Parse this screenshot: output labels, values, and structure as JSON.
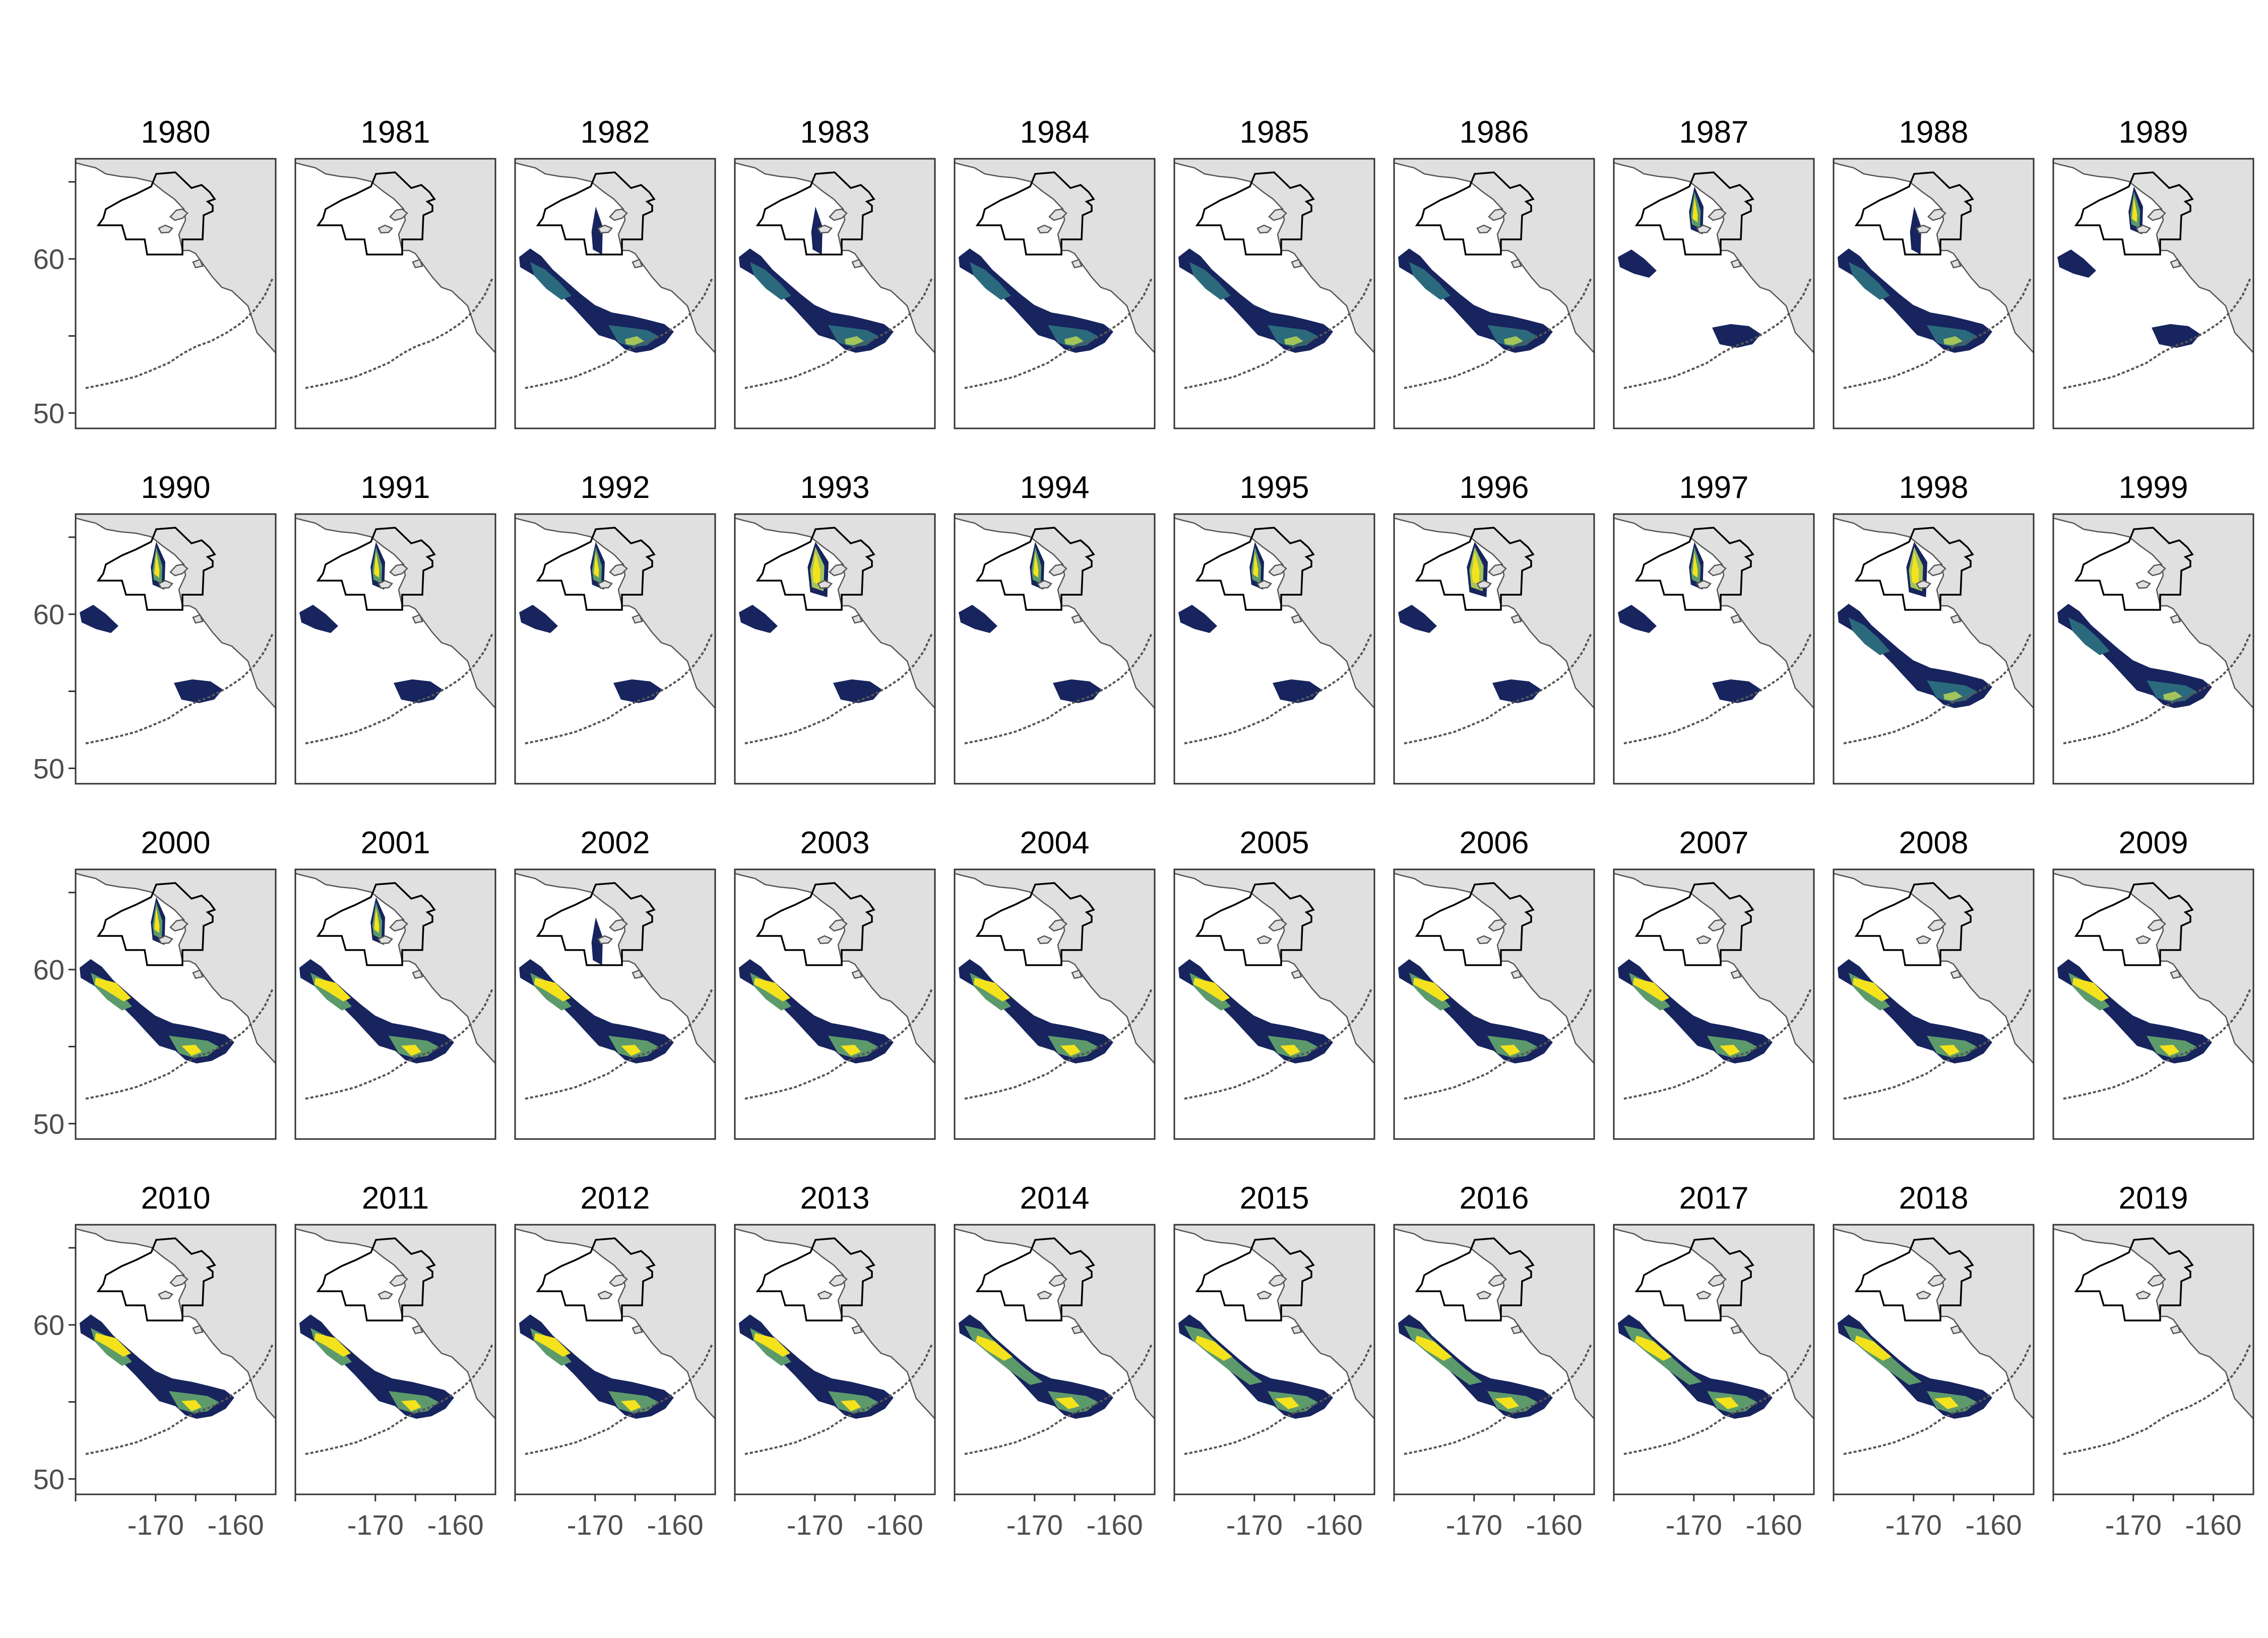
{
  "panels": [
    {
      "year": "1980",
      "level": 0,
      "north": 0
    },
    {
      "year": "1981",
      "level": 0,
      "north": 0
    },
    {
      "year": "1982",
      "level": 2,
      "north": 1
    },
    {
      "year": "1983",
      "level": 2,
      "north": 1
    },
    {
      "year": "1984",
      "level": 2,
      "north": 0
    },
    {
      "year": "1985",
      "level": 2,
      "north": 0
    },
    {
      "year": "1986",
      "level": 2,
      "north": 0
    },
    {
      "year": "1987",
      "level": 1,
      "north": 2
    },
    {
      "year": "1988",
      "level": 2,
      "north": 1
    },
    {
      "year": "1989",
      "level": 1,
      "north": 2
    },
    {
      "year": "1990",
      "level": 1,
      "north": 2
    },
    {
      "year": "1991",
      "level": 1,
      "north": 2
    },
    {
      "year": "1992",
      "level": 1,
      "north": 2
    },
    {
      "year": "1993",
      "level": 1,
      "north": 3
    },
    {
      "year": "1994",
      "level": 1,
      "north": 2
    },
    {
      "year": "1995",
      "level": 1,
      "north": 2
    },
    {
      "year": "1996",
      "level": 1,
      "north": 3
    },
    {
      "year": "1997",
      "level": 1,
      "north": 2
    },
    {
      "year": "1998",
      "level": 2,
      "north": 3
    },
    {
      "year": "1999",
      "level": 2,
      "north": 0
    },
    {
      "year": "2000",
      "level": 3,
      "north": 2
    },
    {
      "year": "2001",
      "level": 3,
      "north": 2
    },
    {
      "year": "2002",
      "level": 3,
      "north": 1
    },
    {
      "year": "2003",
      "level": 3,
      "north": 0
    },
    {
      "year": "2004",
      "level": 3,
      "north": 0
    },
    {
      "year": "2005",
      "level": 3,
      "north": 0
    },
    {
      "year": "2006",
      "level": 3,
      "north": 0
    },
    {
      "year": "2007",
      "level": 3,
      "north": 0
    },
    {
      "year": "2008",
      "level": 3,
      "north": 0
    },
    {
      "year": "2009",
      "level": 3,
      "north": 0
    },
    {
      "year": "2010",
      "level": 3,
      "north": 0
    },
    {
      "year": "2011",
      "level": 3,
      "north": 0
    },
    {
      "year": "2012",
      "level": 3,
      "north": 0
    },
    {
      "year": "2013",
      "level": 3,
      "north": 0
    },
    {
      "year": "2014",
      "level": 4,
      "north": 0
    },
    {
      "year": "2015",
      "level": 4,
      "north": 0
    },
    {
      "year": "2016",
      "level": 4,
      "north": 0
    },
    {
      "year": "2017",
      "level": 4,
      "north": 0
    },
    {
      "year": "2018",
      "level": 4,
      "north": 0
    },
    {
      "year": "2019",
      "level": 0,
      "north": 0
    }
  ],
  "y_axis": {
    "ticks": [
      {
        "value": 60,
        "label": "60"
      },
      {
        "value": 50,
        "label": "50"
      }
    ],
    "minor_ticks": [
      65,
      55
    ]
  },
  "x_axis": {
    "ticks": [
      {
        "value": -170,
        "label": "-170"
      },
      {
        "value": -160,
        "label": "-160"
      }
    ],
    "minor_ticks": [
      -180,
      -165
    ]
  },
  "extent": {
    "lon": [
      -180,
      -155
    ],
    "lat": [
      49,
      66.5
    ]
  },
  "colors": {
    "land": "#e0e0e0",
    "land_stroke": "#555555",
    "boundary": "#000000",
    "frame": "#333333",
    "density": [
      "#17245e",
      "#2b6a7c",
      "#5c9a6c",
      "#a3c45b",
      "#f4e21c"
    ]
  }
}
